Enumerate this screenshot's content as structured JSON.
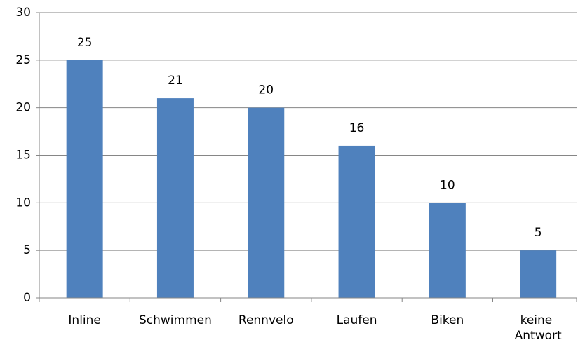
{
  "chart_data": {
    "type": "bar",
    "categories": [
      "Inline",
      "Schwimmen",
      "Rennvelo",
      "Laufen",
      "Biken",
      "keine Antwort"
    ],
    "values": [
      25,
      21,
      20,
      16,
      10,
      5
    ],
    "color": "#4f81bd",
    "ylim": [
      0,
      30
    ],
    "yticks": [
      0,
      5,
      10,
      15,
      20,
      25,
      30
    ],
    "grid": true,
    "data_labels": true
  }
}
